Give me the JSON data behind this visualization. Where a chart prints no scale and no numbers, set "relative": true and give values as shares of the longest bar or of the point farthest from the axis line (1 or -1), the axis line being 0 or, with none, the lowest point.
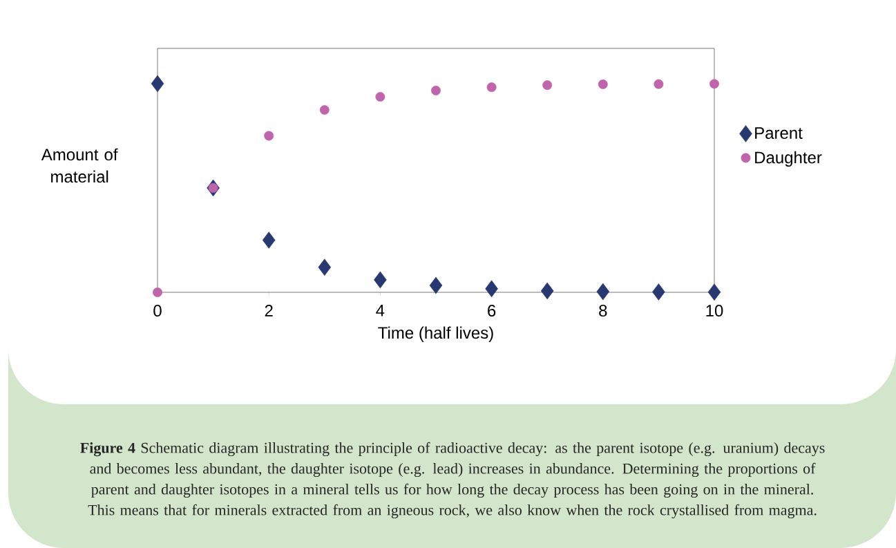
{
  "chart_data": {
    "type": "scatter",
    "relative": true,
    "xlabel": "Time (half lives)",
    "ylabel": "Amount of material",
    "x": [
      0,
      1,
      2,
      3,
      4,
      5,
      6,
      7,
      8,
      9,
      10
    ],
    "xlim": [
      0,
      10
    ],
    "xticks": [
      0,
      2,
      4,
      6,
      8,
      10
    ],
    "tick_labels": "x",
    "grid": false,
    "legend": "right",
    "series": [
      {
        "name": "Parent",
        "color": "#283870",
        "marker": "diamond",
        "values": [
          1,
          0.5,
          0.25,
          0.12,
          0.06,
          0.033,
          0.017,
          0.007,
          0.003,
          0.002,
          0.001
        ]
      },
      {
        "name": "Daughter",
        "color": "#c064ac",
        "marker": "circle",
        "values": [
          0,
          0.5,
          0.75,
          0.874,
          0.937,
          0.967,
          0.983,
          0.993,
          0.997,
          0.998,
          0.999
        ]
      }
    ],
    "annotations": [
      "**Figure 4**  Schematic diagram illustrating the principle of radioactive decay: as the parent isotope (e.g. uranium) decays and becomes less abundant, the daughter isotope (e.g. lead) increases in abundance. Determining the proportions of parent and daughter isotopes in a mineral tells us for how long the decay process has been going on in the mineral.  This means that for minerals extracted from an igneous rock, we also know when the rock crystallised from magma."
    ]
  }
}
